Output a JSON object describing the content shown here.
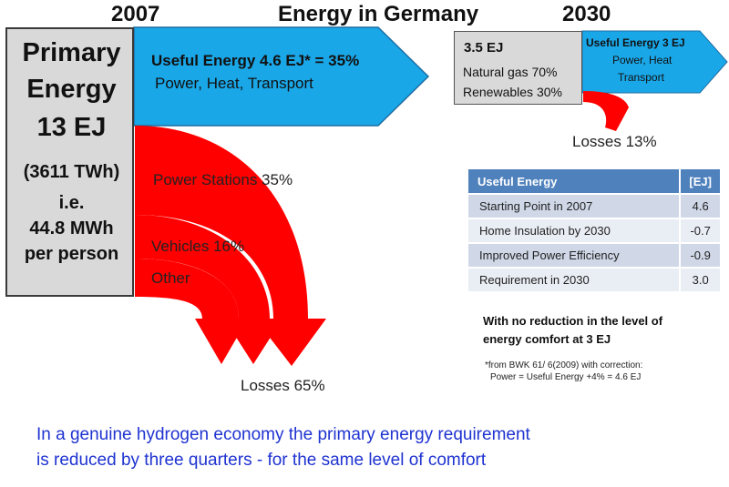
{
  "header": {
    "year_left": "2007",
    "title": "Energy in Germany",
    "year_right": "2030"
  },
  "primary": {
    "line1": "Primary",
    "line2": "Energy",
    "amount": "13 EJ",
    "twh": "(3611 TWh)",
    "ie": "i.e.",
    "per_person_value": "44.8 MWh",
    "per_person_label": "per person"
  },
  "useful_2007": {
    "main": "Useful Energy 4.6 EJ* = 35%",
    "sub": "Power, Heat, Transport"
  },
  "losses_2007": {
    "power_stations": "Power Stations 35%",
    "vehicles": "Vehicles 16%",
    "other": "Other",
    "total": "Losses 65%"
  },
  "scenario_2030": {
    "amount": "3.5 EJ",
    "gas": "Natural gas 70%",
    "renewables": "Renewables 30%",
    "useful_title": "Useful Energy 3 EJ",
    "useful_line2": "Power, Heat",
    "useful_line3": "Transport",
    "losses": "Losses 13%"
  },
  "table": {
    "header_label": "Useful Energy",
    "header_unit": "[EJ]",
    "rows": [
      {
        "label": "Starting Point in 2007",
        "value": "4.6"
      },
      {
        "label": "Home Insulation by 2030",
        "value": "-0.7"
      },
      {
        "label": "Improved Power Efficiency",
        "value": "-0.9"
      },
      {
        "label": "Requirement in 2030",
        "value": "3.0"
      }
    ]
  },
  "note": "With no reduction in the level of energy comfort at 3 EJ",
  "footnote": {
    "line1": "*from BWK 61/ 6(2009) with correction:",
    "line2": "Power = Useful Energy +4% = 4.6 EJ"
  },
  "bottom": {
    "line1": "In a genuine hydrogen economy the primary energy requirement",
    "line2": "is reduced by three quarters - for the same level of comfort"
  },
  "colors": {
    "useful_blue": "#1aa7e8",
    "losses_red": "#ff0000",
    "box_gray": "#d9d9d9",
    "table_header": "#4f81bd",
    "bottom_text_blue": "#1f33d1"
  }
}
